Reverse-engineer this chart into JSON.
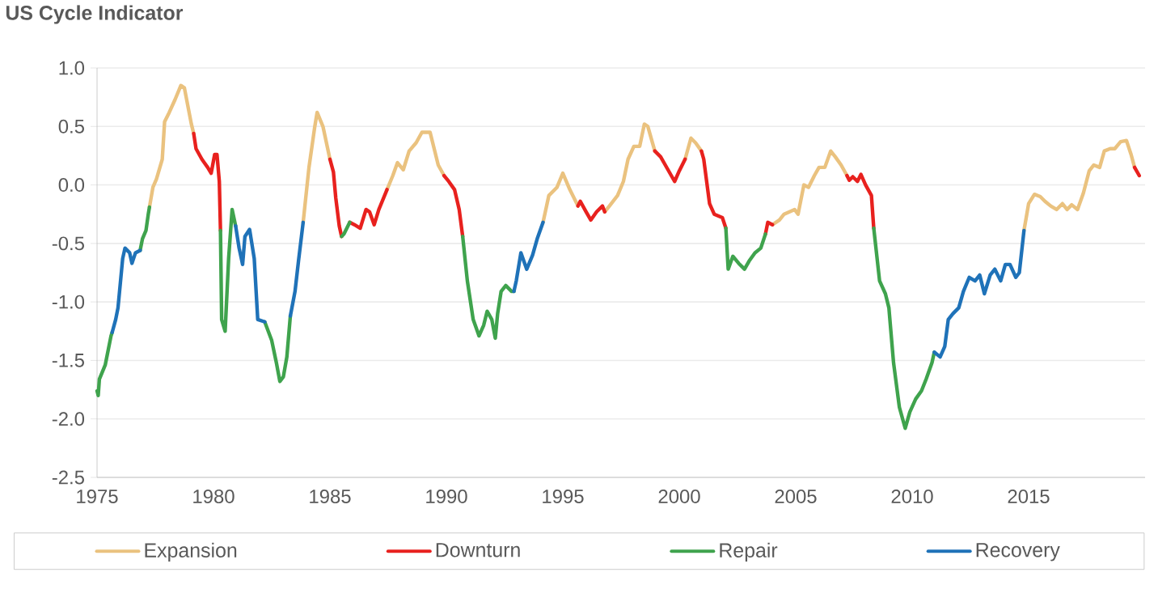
{
  "chart_data": {
    "type": "line",
    "title": "US Cycle Indicator",
    "xlim": [
      1975,
      2020
    ],
    "xticks": [
      1975,
      1980,
      1985,
      1990,
      1995,
      2000,
      2005,
      2010,
      2015
    ],
    "ylim": [
      -2.5,
      1.0
    ],
    "yticks": [
      {
        "value": 1.0,
        "label": "1.0"
      },
      0.5,
      {
        "value": 0.0,
        "label": "0.0"
      },
      -0.5,
      {
        "value": -1.0,
        "label": "-1.0"
      },
      -1.5,
      {
        "value": -2.0,
        "label": "-2.0"
      },
      -2.5
    ],
    "grid": "y",
    "legend": "bottom",
    "line_style": "solid",
    "series": [
      {
        "name": "Expansion",
        "color": "#eac27f",
        "x": [
          1977.25,
          1977.4,
          1977.55,
          1977.8,
          1977.9,
          1978.1,
          1978.35,
          1978.6,
          1978.75,
          1979.05,
          1979.15,
          null,
          1983.85,
          1984.1,
          1984.35,
          1984.45,
          1984.7,
          1985.0,
          null,
          1987.45,
          1987.7,
          1987.9,
          1988.15,
          1988.4,
          1988.7,
          1988.95,
          1989.3,
          1989.65,
          1989.9,
          null,
          1994.15,
          1994.4,
          1994.75,
          1995.0,
          1995.3,
          1995.65,
          null,
          1996.8,
          1997.0,
          1997.35,
          1997.6,
          1997.8,
          1998.05,
          1998.3,
          1998.5,
          1998.65,
          1998.85,
          1998.95,
          null,
          2000.25,
          2000.5,
          2000.7,
          2000.95,
          null,
          2004.0,
          2004.3,
          2004.5,
          2004.95,
          2005.1,
          2005.35,
          2005.55,
          2005.8,
          2006.0,
          2006.25,
          2006.5,
          2006.7,
          2006.95,
          2007.2,
          null,
          2014.8,
          2015.0,
          2015.25,
          2015.5,
          2015.7,
          2015.95,
          2016.2,
          2016.45,
          2016.65,
          2016.85,
          2017.1,
          2017.35,
          2017.6,
          2017.8,
          2018.05,
          2018.25,
          2018.5,
          2018.7,
          2018.95,
          2019.2,
          2019.4,
          2019.55
        ],
        "values": [
          -0.19,
          -0.02,
          0.05,
          0.22,
          0.54,
          0.62,
          0.73,
          0.85,
          0.83,
          0.52,
          0.44,
          null,
          -0.32,
          0.15,
          0.5,
          0.62,
          0.5,
          0.22,
          null,
          -0.04,
          0.08,
          0.19,
          0.13,
          0.29,
          0.36,
          0.45,
          0.45,
          0.17,
          0.08,
          null,
          -0.32,
          -0.09,
          -0.02,
          0.1,
          -0.04,
          -0.18,
          null,
          -0.23,
          -0.18,
          -0.09,
          0.03,
          0.22,
          0.33,
          0.33,
          0.52,
          0.5,
          0.36,
          0.29,
          null,
          0.22,
          0.4,
          0.36,
          0.29,
          null,
          -0.34,
          -0.3,
          -0.25,
          -0.21,
          -0.25,
          0.0,
          -0.02,
          0.08,
          0.15,
          0.15,
          0.29,
          0.24,
          0.17,
          0.08,
          null,
          -0.39,
          -0.16,
          -0.08,
          -0.1,
          -0.14,
          -0.18,
          -0.21,
          -0.16,
          -0.21,
          -0.17,
          -0.21,
          -0.07,
          0.12,
          0.17,
          0.15,
          0.29,
          0.31,
          0.31,
          0.37,
          0.38,
          0.26,
          0.15
        ]
      },
      {
        "name": "Downturn",
        "color": "#e8211e",
        "x": [
          1979.15,
          1979.25,
          1979.5,
          1979.75,
          1979.9,
          1980.05,
          1980.15,
          1980.25,
          1980.3,
          null,
          1985.0,
          1985.15,
          1985.25,
          1985.4,
          1985.5,
          null,
          1985.85,
          1986.05,
          1986.3,
          1986.55,
          1986.7,
          1986.9,
          1987.1,
          1987.45,
          null,
          1989.9,
          1990.1,
          1990.35,
          1990.55,
          1990.7,
          null,
          1995.65,
          1995.75,
          1996.0,
          1996.2,
          1996.45,
          1996.7,
          1996.8,
          null,
          1998.95,
          1999.2,
          1999.4,
          1999.8,
          2000.0,
          2000.25,
          null,
          2000.95,
          2001.05,
          2001.3,
          2001.5,
          2001.85,
          2002.0,
          null,
          2003.7,
          2003.8,
          2004.0,
          null,
          2007.2,
          2007.3,
          2007.45,
          2007.65,
          2007.8,
          2008.0,
          2008.25,
          2008.35,
          null,
          2019.55,
          2019.75
        ],
        "values": [
          0.44,
          0.31,
          0.22,
          0.15,
          0.1,
          0.26,
          0.26,
          0.03,
          -0.39,
          null,
          0.22,
          0.11,
          -0.11,
          -0.35,
          -0.44,
          null,
          -0.32,
          -0.34,
          -0.37,
          -0.21,
          -0.23,
          -0.34,
          -0.21,
          -0.04,
          null,
          0.08,
          0.03,
          -0.04,
          -0.21,
          -0.44,
          null,
          -0.18,
          -0.14,
          -0.23,
          -0.3,
          -0.23,
          -0.18,
          -0.23,
          null,
          0.29,
          0.24,
          0.17,
          0.03,
          0.12,
          0.22,
          null,
          0.29,
          0.22,
          -0.16,
          -0.25,
          -0.28,
          -0.37,
          null,
          -0.42,
          -0.32,
          -0.34,
          null,
          0.08,
          0.04,
          0.07,
          0.03,
          0.09,
          0.0,
          -0.09,
          -0.37,
          null,
          0.15,
          0.08
        ]
      },
      {
        "name": "Repair",
        "color": "#3fa34d",
        "x": [
          1975.0,
          1975.05,
          1975.1,
          1975.35,
          1975.6,
          1975.65,
          null,
          1976.85,
          1976.95,
          1977.1,
          1977.2,
          1977.25,
          null,
          1980.3,
          1980.35,
          1980.5,
          1980.65,
          1980.8,
          1980.95,
          null,
          1982.2,
          1982.5,
          1982.7,
          1982.85,
          1983.0,
          1983.15,
          1983.3,
          null,
          1985.5,
          1985.6,
          1985.85,
          null,
          1990.7,
          1990.9,
          1991.15,
          1991.4,
          1991.6,
          1991.75,
          1991.95,
          1992.1,
          1992.2,
          1992.35,
          1992.55,
          1992.8,
          1992.9,
          null,
          2002.0,
          2002.1,
          2002.3,
          2002.55,
          2002.8,
          2003.0,
          2003.25,
          2003.5,
          2003.7,
          null,
          2008.35,
          2008.6,
          2008.85,
          2009.0,
          2009.2,
          2009.45,
          2009.7,
          2009.9,
          2010.15,
          2010.4,
          2010.6,
          2010.85,
          2010.95
        ],
        "values": [
          -1.76,
          -1.8,
          -1.66,
          -1.54,
          -1.29,
          -1.26,
          null,
          -0.56,
          -0.46,
          -0.39,
          -0.25,
          -0.19,
          null,
          -0.39,
          -1.15,
          -1.25,
          -0.63,
          -0.21,
          -0.35,
          null,
          -1.17,
          -1.33,
          -1.52,
          -1.68,
          -1.64,
          -1.47,
          -1.12,
          null,
          -0.44,
          -0.42,
          -0.32,
          null,
          -0.44,
          -0.82,
          -1.15,
          -1.29,
          -1.2,
          -1.08,
          -1.15,
          -1.31,
          -1.1,
          -0.91,
          -0.86,
          -0.91,
          -0.91,
          null,
          -0.37,
          -0.72,
          -0.61,
          -0.67,
          -0.72,
          -0.65,
          -0.58,
          -0.54,
          -0.42,
          null,
          -0.37,
          -0.82,
          -0.93,
          -1.05,
          -1.52,
          -1.9,
          -2.08,
          -1.94,
          -1.83,
          -1.76,
          -1.66,
          -1.52,
          -1.43
        ]
      },
      {
        "name": "Recovery",
        "color": "#1f72b8",
        "x": [
          1975.65,
          1975.8,
          1975.9,
          1976.1,
          1976.2,
          1976.4,
          1976.5,
          1976.65,
          1976.85,
          null,
          1980.95,
          1981.1,
          1981.25,
          1981.35,
          1981.55,
          1981.75,
          1981.9,
          1982.2,
          null,
          1983.3,
          1983.5,
          1983.65,
          1983.85,
          null,
          1992.9,
          1993.0,
          1993.2,
          1993.45,
          1993.7,
          1993.9,
          1994.15,
          null,
          2010.95,
          2011.2,
          2011.4,
          2011.55,
          2011.75,
          2012.0,
          2012.2,
          2012.45,
          2012.7,
          2012.9,
          2013.1,
          2013.35,
          2013.55,
          2013.8,
          2014.0,
          2014.2,
          2014.45,
          2014.6,
          2014.8
        ],
        "values": [
          -1.26,
          -1.15,
          -1.05,
          -0.63,
          -0.54,
          -0.58,
          -0.67,
          -0.58,
          -0.56,
          null,
          -0.35,
          -0.54,
          -0.68,
          -0.44,
          -0.38,
          -0.63,
          -1.15,
          -1.17,
          null,
          -1.12,
          -0.91,
          -0.65,
          -0.32,
          null,
          -0.91,
          -0.82,
          -0.58,
          -0.72,
          -0.6,
          -0.46,
          -0.32,
          null,
          -1.43,
          -1.47,
          -1.38,
          -1.15,
          -1.1,
          -1.05,
          -0.91,
          -0.79,
          -0.82,
          -0.77,
          -0.93,
          -0.77,
          -0.72,
          -0.82,
          -0.68,
          -0.68,
          -0.79,
          -0.75,
          -0.39
        ]
      }
    ]
  }
}
